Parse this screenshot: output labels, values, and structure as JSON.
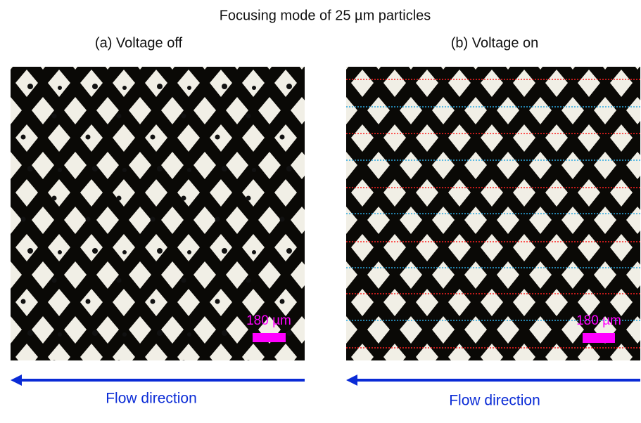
{
  "title": "Focusing mode of 25 µm particles",
  "panels": [
    {
      "label": "(a)  Voltage off",
      "scale_bar": "180 µm",
      "caption": "Flow direction"
    },
    {
      "label": "(b) Voltage on",
      "scale_bar": "180 µm",
      "caption": "Flow direction"
    }
  ]
}
